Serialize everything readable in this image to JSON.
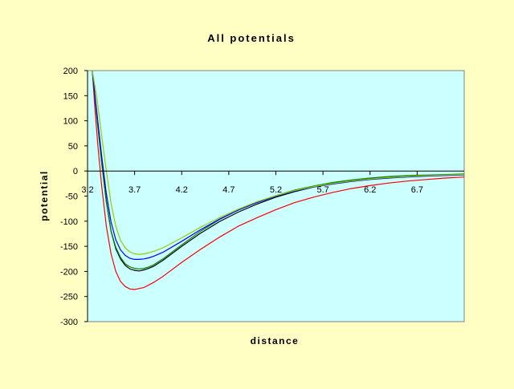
{
  "chart_data": {
    "type": "line",
    "title": "All potentials",
    "xlabel": "distance",
    "ylabel": "potential",
    "xlim": [
      3.2,
      7.2
    ],
    "ylim": [
      -300,
      200
    ],
    "xticks": [
      "3.2",
      "3.7",
      "4.2",
      "4.7",
      "5.2",
      "5.7",
      "6.2",
      "6.7"
    ],
    "yticks": [
      "200",
      "150",
      "100",
      "50",
      "0",
      "-50",
      "-100",
      "-150",
      "-200",
      "-250",
      "-300"
    ],
    "xtick_values": [
      3.2,
      3.7,
      4.2,
      4.7,
      5.2,
      5.7,
      6.2,
      6.7
    ],
    "ytick_values": [
      200,
      150,
      100,
      50,
      0,
      -50,
      -100,
      -150,
      -200,
      -250,
      -300
    ],
    "grid": false,
    "legend": "none",
    "plot_background": "#ccffff",
    "page_background": "#ffffc4",
    "series": [
      {
        "color": "#ff0000",
        "x": [
          3.25,
          3.28,
          3.31,
          3.35,
          3.4,
          3.45,
          3.5,
          3.55,
          3.6,
          3.65,
          3.7,
          3.75,
          3.8,
          3.85,
          3.9,
          4.0,
          4.2,
          4.4,
          4.6,
          4.8,
          5.0,
          5.2,
          5.4,
          5.6,
          5.8,
          6.0,
          6.2,
          6.4,
          6.6,
          6.8,
          7.0,
          7.2
        ],
        "y": [
          200,
          120,
          50,
          -30,
          -110,
          -165,
          -200,
          -220,
          -230,
          -235,
          -236,
          -234,
          -232,
          -227,
          -222,
          -210,
          -182,
          -156,
          -132,
          -110,
          -93,
          -77,
          -63,
          -52,
          -43,
          -35,
          -29,
          -24,
          -20,
          -17,
          -14,
          -12
        ]
      },
      {
        "color": "#000000",
        "x": [
          3.25,
          3.3,
          3.35,
          3.4,
          3.45,
          3.5,
          3.55,
          3.6,
          3.65,
          3.7,
          3.75,
          3.8,
          3.85,
          3.9,
          4.0,
          4.2,
          4.4,
          4.6,
          4.8,
          5.0,
          5.2,
          5.4,
          5.6,
          5.8,
          6.0,
          6.2,
          6.4,
          6.6,
          6.8,
          7.0,
          7.2
        ],
        "y": [
          200,
          110,
          20,
          -60,
          -120,
          -155,
          -175,
          -188,
          -195,
          -198,
          -199,
          -197,
          -194,
          -190,
          -178,
          -150,
          -124,
          -101,
          -82,
          -66,
          -52,
          -41,
          -32,
          -25,
          -20,
          -16,
          -13,
          -11,
          -9,
          -8,
          -7
        ]
      },
      {
        "color": "#008000",
        "x": [
          3.25,
          3.3,
          3.35,
          3.4,
          3.45,
          3.5,
          3.55,
          3.6,
          3.65,
          3.7,
          3.75,
          3.8,
          3.85,
          3.9,
          4.0,
          4.2,
          4.4,
          4.6,
          4.8,
          5.0,
          5.2,
          5.4,
          5.6,
          5.8,
          6.0,
          6.2,
          6.4,
          6.6,
          6.8,
          7.0,
          7.2
        ],
        "y": [
          200,
          105,
          15,
          -62,
          -120,
          -152,
          -172,
          -185,
          -191,
          -194,
          -195,
          -194,
          -191,
          -187,
          -175,
          -147,
          -120,
          -97,
          -78,
          -62,
          -49,
          -38,
          -30,
          -23,
          -18,
          -14,
          -11,
          -9,
          -8,
          -7,
          -6
        ]
      },
      {
        "color": "#0000ff",
        "x": [
          3.25,
          3.3,
          3.35,
          3.4,
          3.45,
          3.5,
          3.55,
          3.6,
          3.65,
          3.7,
          3.75,
          3.8,
          3.85,
          3.9,
          4.0,
          4.2,
          4.4,
          4.6,
          4.8,
          5.0,
          5.2,
          5.4,
          5.6,
          5.8,
          6.0,
          6.2,
          6.4,
          6.6,
          6.8,
          7.0,
          7.2
        ],
        "y": [
          200,
          115,
          30,
          -45,
          -102,
          -137,
          -157,
          -168,
          -174,
          -176,
          -176,
          -175,
          -173,
          -170,
          -162,
          -140,
          -117,
          -96,
          -78,
          -63,
          -50,
          -40,
          -32,
          -26,
          -21,
          -17,
          -14,
          -12,
          -10,
          -9,
          -8
        ]
      },
      {
        "color": "#99cc00",
        "x": [
          3.25,
          3.3,
          3.35,
          3.4,
          3.45,
          3.5,
          3.55,
          3.6,
          3.65,
          3.7,
          3.75,
          3.8,
          3.85,
          3.9,
          4.0,
          4.2,
          4.4,
          4.6,
          4.8,
          5.0,
          5.2,
          5.4,
          5.6,
          5.8,
          6.0,
          6.2,
          6.4,
          6.6,
          6.8,
          7.0,
          7.2
        ],
        "y": [
          200,
          145,
          70,
          0,
          -65,
          -110,
          -138,
          -153,
          -161,
          -165,
          -166,
          -165,
          -163,
          -160,
          -153,
          -133,
          -112,
          -93,
          -76,
          -61,
          -49,
          -39,
          -31,
          -25,
          -20,
          -16,
          -13,
          -11,
          -9,
          -8,
          -7
        ]
      }
    ]
  }
}
